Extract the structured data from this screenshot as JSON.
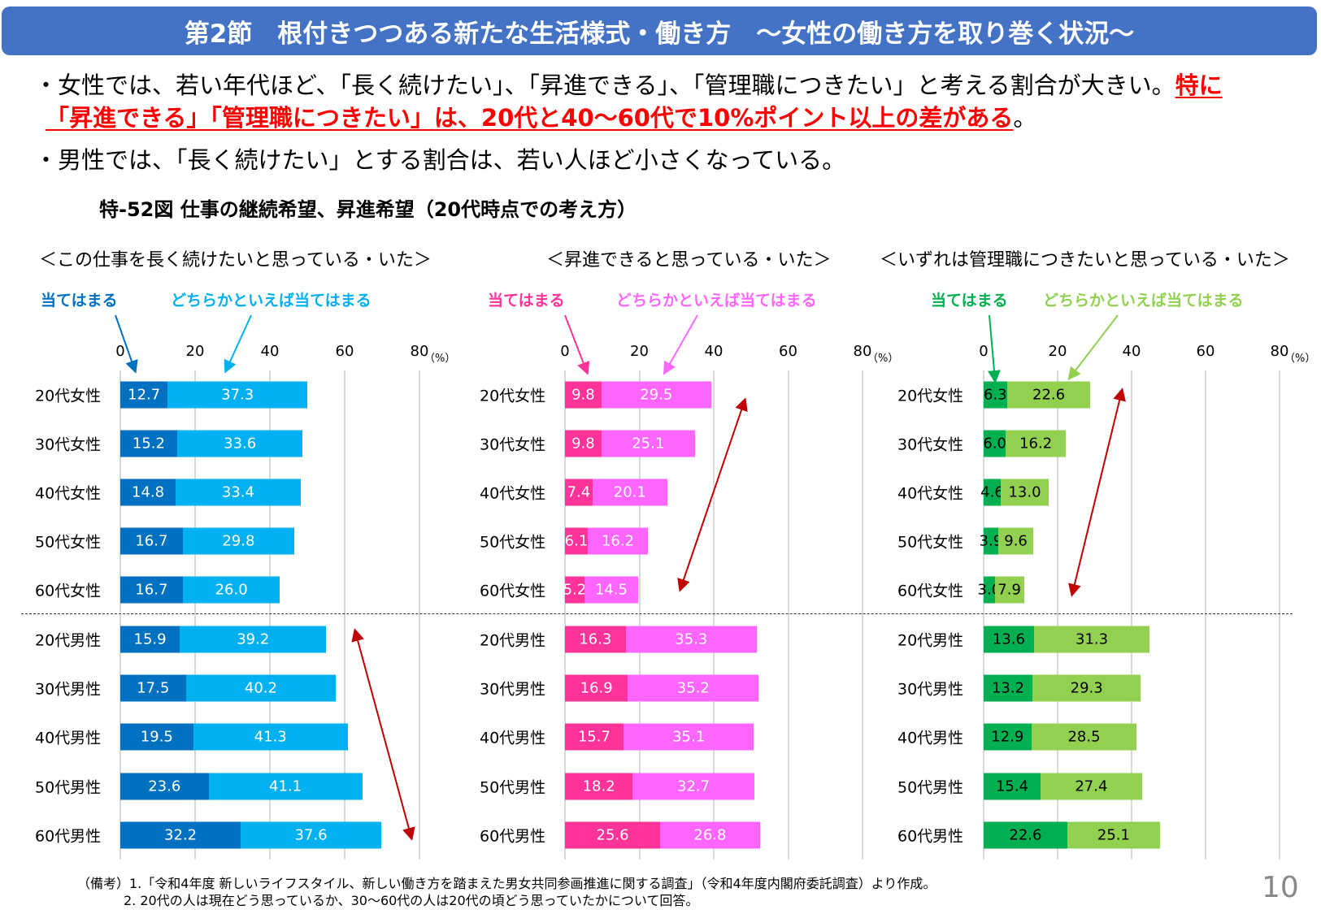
{
  "header": {
    "title": "第2節　根付きつつある新たな生活様式・働き方　～女性の働き方を取り巻く状況～"
  },
  "bullets": {
    "b1_normal": "・女性では、若い年代ほど、「長く続けたい」、「昇進できる」、「管理職につきたい」と考える割合が大きい。",
    "b1_red_a": "特に",
    "b1_red_b": "「昇進できる」「管理職につきたい」は、20代と40～60代で10%ポイント以上の差がある",
    "b1_end": "。",
    "b2": "・男性では、「長く続けたい」とする割合は、若い人ほど小さくなっている。"
  },
  "figure_title": "特-52図 仕事の継続希望、昇進希望（20代時点での考え方）",
  "colors": {
    "header": "#4472C4",
    "emphasis": "#FF0000",
    "arrow": "#C00000"
  },
  "chart_data": [
    {
      "type": "bar",
      "stacked": true,
      "orientation": "horizontal",
      "title": "＜この仕事を長く続けたいと思っている・いた＞",
      "categories": [
        "20代女性",
        "30代女性",
        "40代女性",
        "50代女性",
        "60代女性",
        "20代男性",
        "30代男性",
        "40代男性",
        "50代男性",
        "60代男性"
      ],
      "xlim": [
        0,
        80
      ],
      "xticks": [
        "0",
        "20",
        "40",
        "60",
        "80"
      ],
      "unit": "（%）",
      "series": [
        {
          "name": "当てはまる",
          "color": "#0070C0",
          "label_color": "#FFFFFF",
          "values": [
            12.7,
            15.2,
            14.8,
            16.7,
            16.7,
            15.9,
            17.5,
            19.5,
            23.6,
            32.2
          ]
        },
        {
          "name": "どちらかといえば当てはまる",
          "color": "#00B0F0",
          "label_color": "#FFFFFF",
          "values": [
            37.3,
            33.6,
            33.4,
            29.8,
            26.0,
            39.2,
            40.2,
            41.3,
            41.1,
            37.6
          ]
        }
      ]
    },
    {
      "type": "bar",
      "stacked": true,
      "orientation": "horizontal",
      "title": "＜昇進できると思っている・いた＞",
      "categories": [
        "20代女性",
        "30代女性",
        "40代女性",
        "50代女性",
        "60代女性",
        "20代男性",
        "30代男性",
        "40代男性",
        "50代男性",
        "60代男性"
      ],
      "xlim": [
        0,
        80
      ],
      "xticks": [
        "0",
        "20",
        "40",
        "60",
        "80"
      ],
      "unit": "（%）",
      "series": [
        {
          "name": "当てはまる",
          "color": "#FF3399",
          "label_color": "#FFFFFF",
          "values": [
            9.8,
            9.8,
            7.4,
            6.1,
            5.2,
            16.3,
            16.9,
            15.7,
            18.2,
            25.6
          ]
        },
        {
          "name": "どちらかといえば当てはまる",
          "color": "#FF66FF",
          "label_color": "#FFFFFF",
          "values": [
            29.5,
            25.1,
            20.1,
            16.2,
            14.5,
            35.3,
            35.2,
            35.1,
            32.7,
            26.8
          ]
        }
      ]
    },
    {
      "type": "bar",
      "stacked": true,
      "orientation": "horizontal",
      "title": "＜いずれは管理職につきたいと思っている・いた＞",
      "categories": [
        "20代女性",
        "30代女性",
        "40代女性",
        "50代女性",
        "60代女性",
        "20代男性",
        "30代男性",
        "40代男性",
        "50代男性",
        "60代男性"
      ],
      "xlim": [
        0,
        80
      ],
      "xticks": [
        "0",
        "20",
        "40",
        "60",
        "80"
      ],
      "unit": "（%）",
      "series": [
        {
          "name": "当てはまる",
          "color": "#00B050",
          "label_color": "#000000",
          "values": [
            6.3,
            6.0,
            4.6,
            3.9,
            3.0,
            13.6,
            13.2,
            12.9,
            15.4,
            22.6
          ]
        },
        {
          "name": "どちらかといえば当てはまる",
          "color": "#92D050",
          "label_color": "#000000",
          "values": [
            22.6,
            16.2,
            13.0,
            9.6,
            7.9,
            31.3,
            29.3,
            28.5,
            27.4,
            25.1
          ]
        }
      ]
    }
  ],
  "notes": {
    "n1": "（備考）1.「令和4年度 新しいライフスタイル、新しい働き方を踏まえた男女共同参画推進に関する調査」（令和4年度内閣府委託調査）より作成。",
    "n2": "2. 20代の人は現在どう思っているか、30～60代の人は20代の頃どう思っていたかについて回答。"
  },
  "page_number": "10"
}
